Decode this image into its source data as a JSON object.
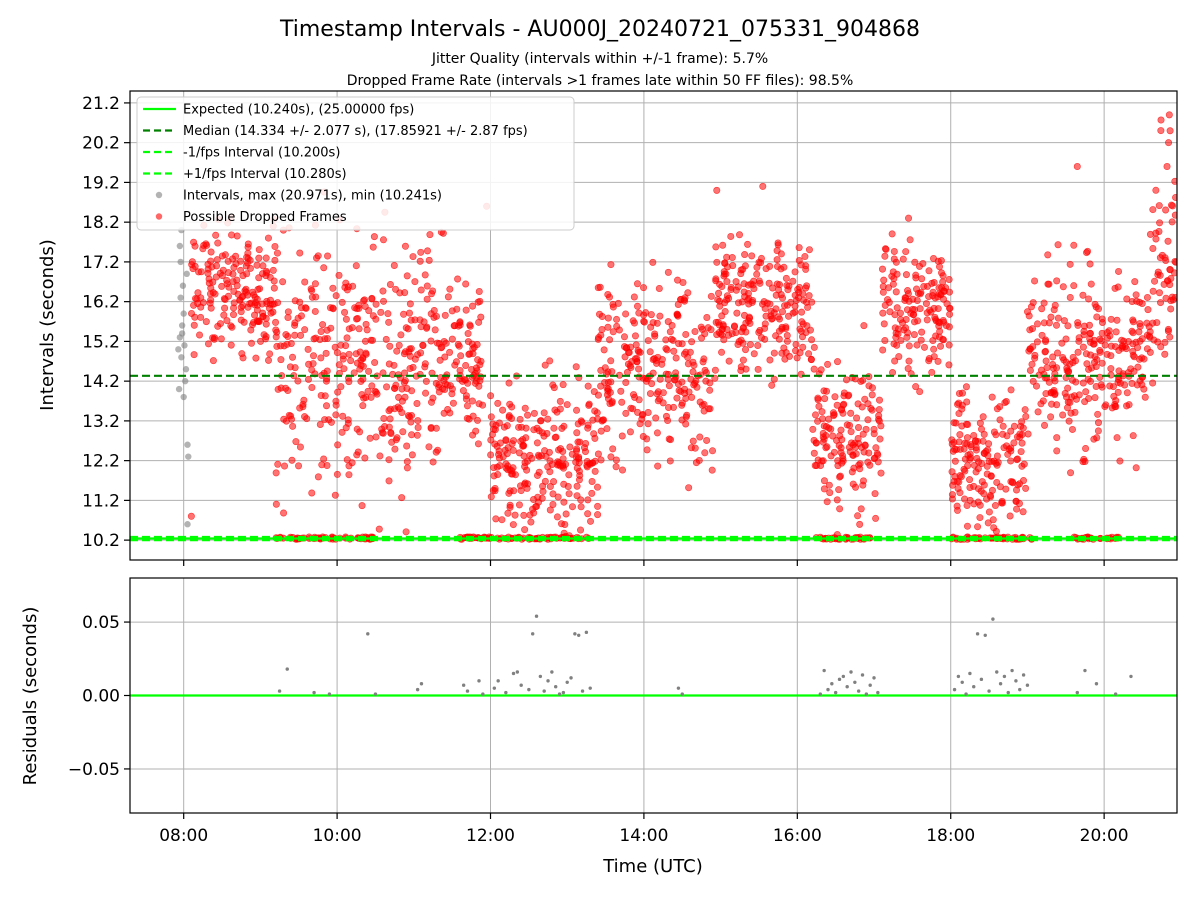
{
  "figure": {
    "title": "Timestamp Intervals - AU000J_20240721_075331_904868",
    "subtitle_1": "Jitter Quality (intervals within +/-1 frame): 5.7%",
    "subtitle_2": "Dropped Frame Rate (intervals >1 frames late within 50 FF files): 98.5%",
    "xlabel": "Time (UTC)"
  },
  "colors": {
    "expected": "#00ff00",
    "median": "#008000",
    "interval_band": "#00ff00",
    "intervals": "#808080",
    "dropped": "#ff0000",
    "residual_zero": "#00ff00",
    "residual_points": "#808080",
    "grid": "#b0b0b0"
  },
  "chart_data": [
    {
      "type": "scatter",
      "panel": "intervals",
      "ylabel": "Intervals (seconds)",
      "xlim_hours": [
        7.3,
        20.95
      ],
      "ylim": [
        9.7,
        21.5
      ],
      "x_ticks": [
        "08:00",
        "10:00",
        "12:00",
        "14:00",
        "16:00",
        "18:00",
        "20:00"
      ],
      "y_ticks": [
        "10.2",
        "11.2",
        "12.2",
        "13.2",
        "14.2",
        "15.2",
        "16.2",
        "17.2",
        "18.2",
        "19.2",
        "20.2",
        "21.2"
      ],
      "grid": true,
      "legend_position": "top-left",
      "lines": [
        {
          "name": "Expected (10.240s), (25.00000 fps)",
          "y": 10.24,
          "style": "solid"
        },
        {
          "name": "Median (14.334 +/- 2.077 s), (17.85921 +/- 2.87 fps)",
          "y": 14.334,
          "style": "dashed"
        },
        {
          "name": "-1/fps Interval (10.200s)",
          "y": 10.2,
          "style": "dashed"
        },
        {
          "name": "+1/fps Interval (10.280s)",
          "y": 10.28,
          "style": "dashed"
        }
      ],
      "series": [
        {
          "name": "Intervals, max (20.971s), min (10.241s)",
          "note": "gray points, mostly near 08:00",
          "points": [
            [
              7.93,
              15.0
            ],
            [
              7.95,
              15.3
            ],
            [
              7.97,
              14.8
            ],
            [
              7.98,
              15.6
            ],
            [
              8.0,
              15.9
            ],
            [
              8.02,
              14.2
            ],
            [
              7.96,
              16.3
            ],
            [
              7.99,
              16.6
            ],
            [
              8.01,
              15.1
            ],
            [
              7.94,
              14.0
            ],
            [
              8.0,
              13.8
            ],
            [
              8.03,
              14.5
            ],
            [
              7.96,
              17.2
            ],
            [
              7.95,
              17.6
            ],
            [
              7.97,
              18.0
            ],
            [
              8.05,
              12.6
            ],
            [
              8.06,
              12.3
            ],
            [
              8.05,
              10.6
            ],
            [
              8.04,
              16.9
            ],
            [
              7.98,
              15.4
            ]
          ]
        },
        {
          "name": "Possible Dropped Frames",
          "note": "red points",
          "clusters": [
            {
              "x_start": 8.1,
              "x_end": 9.2,
              "y_center": 16.5,
              "y_spread": 1.6
            },
            {
              "x_start": 9.2,
              "x_end": 11.0,
              "y_center": 14.6,
              "y_spread": 3.4
            },
            {
              "x_start": 11.0,
              "x_end": 11.9,
              "y_center": 14.8,
              "y_spread": 2.6
            },
            {
              "x_start": 12.0,
              "x_end": 13.4,
              "y_center": 12.3,
              "y_spread": 1.9
            },
            {
              "x_start": 13.4,
              "x_end": 14.9,
              "y_center": 14.5,
              "y_spread": 2.4
            },
            {
              "x_start": 14.9,
              "x_end": 16.2,
              "y_center": 16.1,
              "y_spread": 1.6
            },
            {
              "x_start": 16.2,
              "x_end": 17.1,
              "y_center": 12.8,
              "y_spread": 1.9
            },
            {
              "x_start": 17.1,
              "x_end": 18.0,
              "y_center": 16.0,
              "y_spread": 1.7
            },
            {
              "x_start": 18.0,
              "x_end": 19.0,
              "y_center": 12.2,
              "y_spread": 1.8
            },
            {
              "x_start": 19.0,
              "x_end": 20.6,
              "y_center": 14.8,
              "y_spread": 2.4
            },
            {
              "x_start": 20.6,
              "x_end": 20.95,
              "y_center": 17.2,
              "y_spread": 2.6
            }
          ],
          "floor_clusters": [
            {
              "x_start": 9.2,
              "x_end": 10.5
            },
            {
              "x_start": 11.6,
              "x_end": 13.3
            },
            {
              "x_start": 16.2,
              "x_end": 17.0
            },
            {
              "x_start": 18.0,
              "x_end": 19.1
            },
            {
              "x_start": 19.6,
              "x_end": 20.2
            }
          ],
          "highlights": [
            [
              20.85,
              20.9
            ],
            [
              20.86,
              20.5
            ],
            [
              20.84,
              20.2
            ],
            [
              20.82,
              19.6
            ],
            [
              19.65,
              19.6
            ],
            [
              15.55,
              19.1
            ],
            [
              14.95,
              19.0
            ],
            [
              11.95,
              18.6
            ],
            [
              8.1,
              10.8
            ],
            [
              9.3,
              18.0
            ],
            [
              17.45,
              18.3
            ]
          ]
        }
      ]
    },
    {
      "type": "scatter",
      "panel": "residuals",
      "ylabel": "Residuals (seconds)",
      "xlim_hours": [
        7.3,
        20.95
      ],
      "ylim": [
        -0.08,
        0.08
      ],
      "x_ticks": [
        "08:00",
        "10:00",
        "12:00",
        "14:00",
        "16:00",
        "18:00",
        "20:00"
      ],
      "y_ticks": [
        "0.05",
        "0.00",
        "−0.05"
      ],
      "grid": true,
      "zero_line": 0.0,
      "points": [
        [
          9.25,
          0.003
        ],
        [
          9.35,
          0.018
        ],
        [
          9.7,
          0.002
        ],
        [
          9.9,
          0.001
        ],
        [
          10.4,
          0.042
        ],
        [
          10.5,
          0.001
        ],
        [
          11.05,
          0.004
        ],
        [
          11.1,
          0.008
        ],
        [
          11.65,
          0.007
        ],
        [
          11.7,
          0.003
        ],
        [
          11.85,
          0.01
        ],
        [
          11.9,
          0.001
        ],
        [
          12.05,
          0.005
        ],
        [
          12.1,
          0.01
        ],
        [
          12.2,
          0.002
        ],
        [
          12.3,
          0.015
        ],
        [
          12.35,
          0.016
        ],
        [
          12.4,
          0.007
        ],
        [
          12.5,
          0.004
        ],
        [
          12.55,
          0.042
        ],
        [
          12.6,
          0.054
        ],
        [
          12.65,
          0.013
        ],
        [
          12.7,
          0.003
        ],
        [
          12.75,
          0.01
        ],
        [
          12.8,
          0.016
        ],
        [
          12.85,
          0.006
        ],
        [
          12.9,
          0.001
        ],
        [
          12.95,
          0.002
        ],
        [
          13.0,
          0.009
        ],
        [
          13.05,
          0.012
        ],
        [
          13.1,
          0.042
        ],
        [
          13.15,
          0.041
        ],
        [
          13.2,
          0.003
        ],
        [
          13.25,
          0.043
        ],
        [
          13.3,
          0.005
        ],
        [
          14.45,
          0.005
        ],
        [
          14.5,
          0.001
        ],
        [
          16.3,
          0.001
        ],
        [
          16.35,
          0.017
        ],
        [
          16.4,
          0.004
        ],
        [
          16.45,
          0.008
        ],
        [
          16.5,
          0.002
        ],
        [
          16.55,
          0.011
        ],
        [
          16.6,
          0.013
        ],
        [
          16.65,
          0.006
        ],
        [
          16.7,
          0.016
        ],
        [
          16.75,
          0.009
        ],
        [
          16.8,
          0.003
        ],
        [
          16.85,
          0.014
        ],
        [
          16.9,
          0.001
        ],
        [
          16.95,
          0.007
        ],
        [
          17.0,
          0.012
        ],
        [
          17.05,
          0.002
        ],
        [
          18.05,
          0.004
        ],
        [
          18.1,
          0.013
        ],
        [
          18.15,
          0.009
        ],
        [
          18.2,
          0.001
        ],
        [
          18.25,
          0.015
        ],
        [
          18.3,
          0.006
        ],
        [
          18.35,
          0.042
        ],
        [
          18.4,
          0.011
        ],
        [
          18.45,
          0.041
        ],
        [
          18.5,
          0.003
        ],
        [
          18.55,
          0.052
        ],
        [
          18.6,
          0.016
        ],
        [
          18.65,
          0.008
        ],
        [
          18.7,
          0.013
        ],
        [
          18.75,
          0.002
        ],
        [
          18.8,
          0.017
        ],
        [
          18.85,
          0.01
        ],
        [
          18.9,
          0.004
        ],
        [
          18.95,
          0.014
        ],
        [
          19.0,
          0.007
        ],
        [
          19.65,
          0.002
        ],
        [
          19.75,
          0.017
        ],
        [
          19.9,
          0.008
        ],
        [
          20.15,
          0.001
        ],
        [
          20.35,
          0.013
        ]
      ]
    }
  ]
}
